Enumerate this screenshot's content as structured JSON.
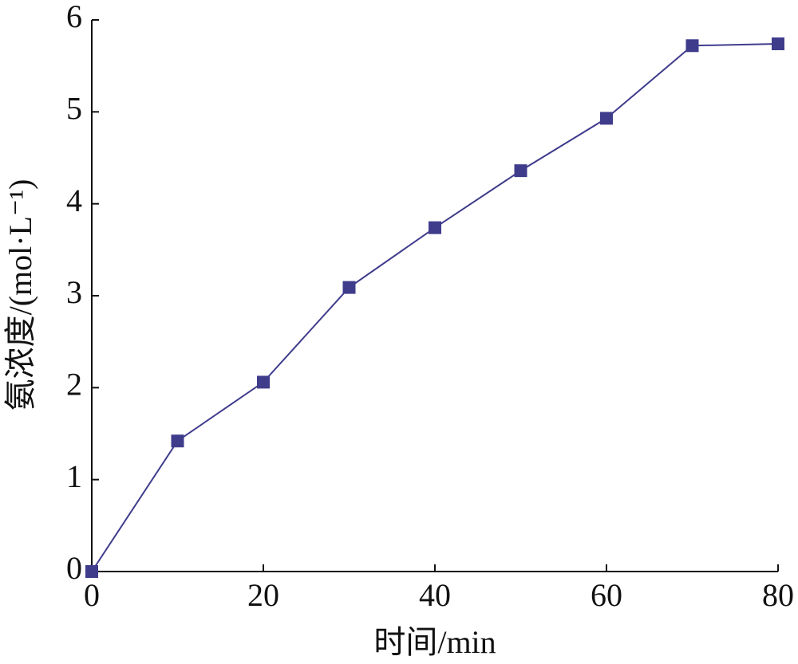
{
  "chart_data": {
    "type": "line",
    "x_label": "时间/min",
    "y_label": "氨浓度/(mol·L⁻¹)",
    "x": [
      0,
      10,
      20,
      30,
      40,
      50,
      60,
      70,
      80
    ],
    "series": [
      {
        "color": "#3f3c8c",
        "values": [
          0,
          1.42,
          2.06,
          3.09,
          3.74,
          4.36,
          4.93,
          5.72,
          5.74
        ]
      }
    ],
    "xlim": [
      0,
      80
    ],
    "xticks": [
      0,
      20,
      40,
      60,
      80
    ],
    "ylim": [
      0,
      6
    ],
    "yticks": [
      0,
      1,
      2,
      3,
      4,
      5,
      6
    ]
  }
}
